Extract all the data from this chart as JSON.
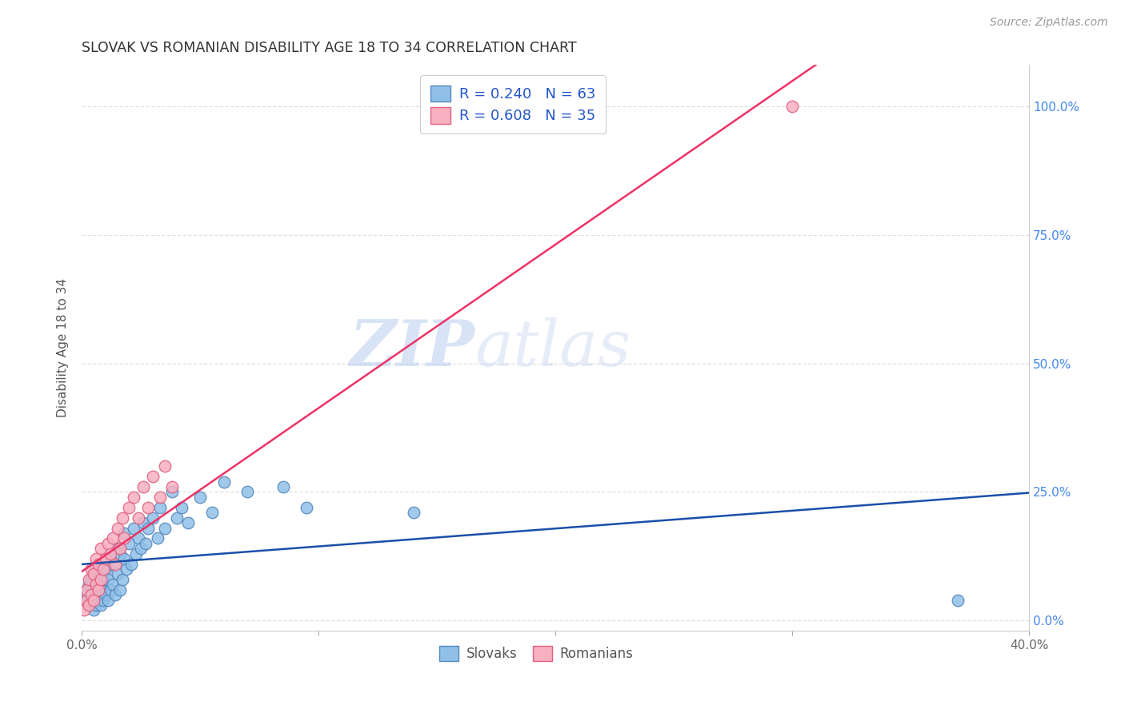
{
  "title": "SLOVAK VS ROMANIAN DISABILITY AGE 18 TO 34 CORRELATION CHART",
  "source": "Source: ZipAtlas.com",
  "ylabel": "Disability Age 18 to 34",
  "xlim": [
    0.0,
    0.4
  ],
  "ylim": [
    -0.02,
    1.08
  ],
  "xtick_labels": [
    "0.0%",
    "",
    "",
    "",
    "40.0%"
  ],
  "xtick_vals": [
    0.0,
    0.1,
    0.2,
    0.3,
    0.4
  ],
  "ytick_vals": [
    0.0,
    0.25,
    0.5,
    0.75,
    1.0
  ],
  "ytick_right_labels": [
    "0.0%",
    "25.0%",
    "50.0%",
    "75.0%",
    "100.0%"
  ],
  "legend_label_slovak": "R = 0.240   N = 63",
  "legend_label_romanian": "R = 0.608   N = 35",
  "slovak_color": "#90c0e8",
  "slovak_edge": "#5588bb",
  "romanian_color": "#f8b0c0",
  "romanian_edge": "#e06080",
  "trendline_slovak_color": "#1a4faa",
  "trendline_romanian_color": "#ee3366",
  "watermark_zip": "ZIP",
  "watermark_atlas": "atlas",
  "slovak_x": [
    0.001,
    0.002,
    0.002,
    0.003,
    0.003,
    0.004,
    0.004,
    0.005,
    0.005,
    0.005,
    0.006,
    0.006,
    0.006,
    0.007,
    0.007,
    0.007,
    0.008,
    0.008,
    0.008,
    0.009,
    0.009,
    0.01,
    0.01,
    0.011,
    0.011,
    0.012,
    0.012,
    0.013,
    0.013,
    0.014,
    0.015,
    0.015,
    0.016,
    0.016,
    0.017,
    0.018,
    0.018,
    0.019,
    0.02,
    0.021,
    0.022,
    0.023,
    0.024,
    0.025,
    0.026,
    0.027,
    0.028,
    0.03,
    0.032,
    0.033,
    0.035,
    0.038,
    0.04,
    0.042,
    0.045,
    0.05,
    0.055,
    0.06,
    0.07,
    0.085,
    0.095,
    0.14,
    0.37
  ],
  "slovak_y": [
    0.05,
    0.04,
    0.06,
    0.03,
    0.07,
    0.04,
    0.08,
    0.02,
    0.05,
    0.09,
    0.03,
    0.06,
    0.1,
    0.04,
    0.07,
    0.11,
    0.03,
    0.06,
    0.09,
    0.04,
    0.08,
    0.05,
    0.1,
    0.04,
    0.08,
    0.06,
    0.12,
    0.07,
    0.11,
    0.05,
    0.09,
    0.14,
    0.06,
    0.13,
    0.08,
    0.12,
    0.17,
    0.1,
    0.15,
    0.11,
    0.18,
    0.13,
    0.16,
    0.14,
    0.19,
    0.15,
    0.18,
    0.2,
    0.16,
    0.22,
    0.18,
    0.25,
    0.2,
    0.22,
    0.19,
    0.24,
    0.21,
    0.27,
    0.25,
    0.26,
    0.22,
    0.21,
    0.04
  ],
  "romanian_x": [
    0.001,
    0.002,
    0.002,
    0.003,
    0.003,
    0.004,
    0.004,
    0.005,
    0.005,
    0.006,
    0.006,
    0.007,
    0.007,
    0.008,
    0.008,
    0.009,
    0.01,
    0.011,
    0.012,
    0.013,
    0.014,
    0.015,
    0.016,
    0.017,
    0.018,
    0.02,
    0.022,
    0.024,
    0.026,
    0.028,
    0.03,
    0.033,
    0.035,
    0.038,
    0.3
  ],
  "romanian_y": [
    0.02,
    0.04,
    0.06,
    0.03,
    0.08,
    0.05,
    0.1,
    0.04,
    0.09,
    0.07,
    0.12,
    0.06,
    0.11,
    0.08,
    0.14,
    0.1,
    0.12,
    0.15,
    0.13,
    0.16,
    0.11,
    0.18,
    0.14,
    0.2,
    0.16,
    0.22,
    0.24,
    0.2,
    0.26,
    0.22,
    0.28,
    0.24,
    0.3,
    0.26,
    1.0
  ],
  "background_color": "#ffffff",
  "grid_color": "#e0e0e0",
  "spine_color": "#cccccc"
}
